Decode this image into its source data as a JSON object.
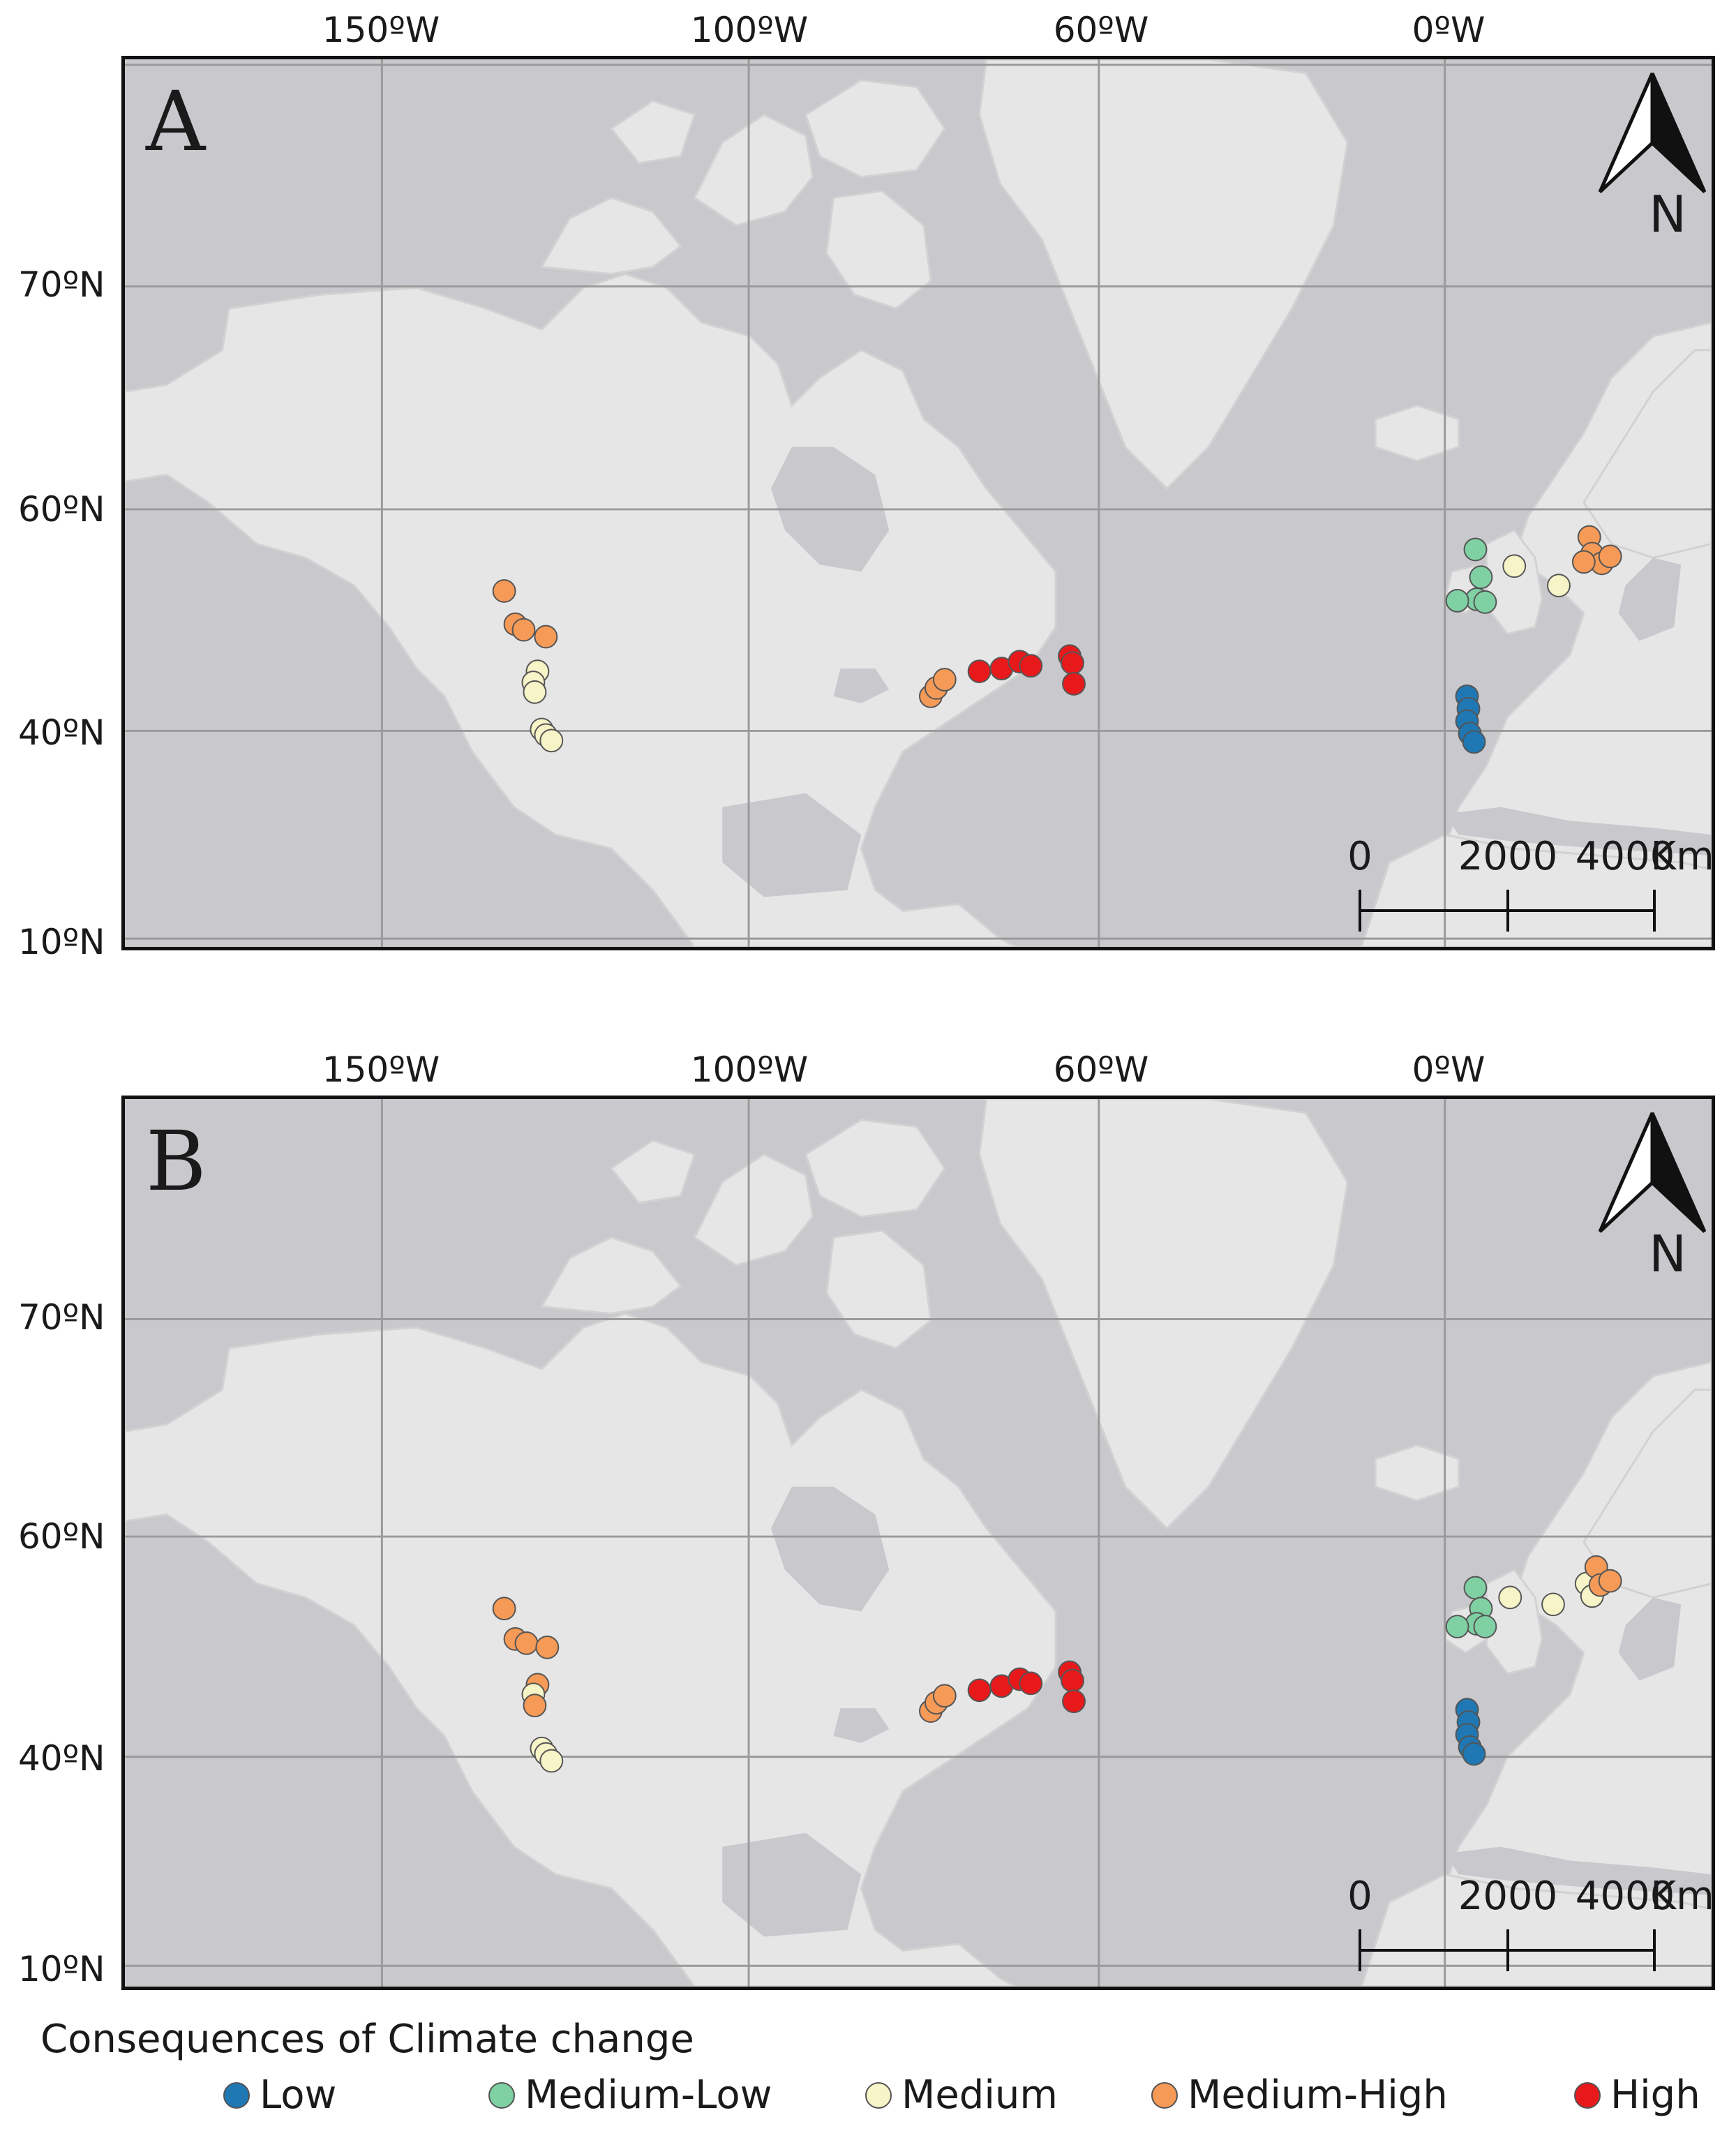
{
  "panels": [
    {
      "letter": "A",
      "north": "N",
      "lon_ticks": [
        "150ºW",
        "100ºW",
        "60ºW",
        "0ºW"
      ],
      "lat_ticks": [
        "70ºN",
        "60ºN",
        "40ºN",
        "10ºN"
      ],
      "scale": {
        "zero": "0",
        "mid": "2000",
        "end": "4000",
        "unit": "Km"
      }
    },
    {
      "letter": "B",
      "north": "N",
      "lon_ticks": [
        "150ºW",
        "100ºW",
        "60ºW",
        "0ºW"
      ],
      "lat_ticks": [
        "70ºN",
        "60ºN",
        "40ºN",
        "10ºN"
      ],
      "scale": {
        "zero": "0",
        "mid": "2000",
        "end": "4000",
        "unit": "Km"
      }
    }
  ],
  "legend": {
    "title": "Consequences of Climate change",
    "items": [
      {
        "label": "Low",
        "color": "#1f78b4"
      },
      {
        "label": "Medium-Low",
        "color": "#7fd1a4"
      },
      {
        "label": "Medium",
        "color": "#f7f4c8"
      },
      {
        "label": "Medium-High",
        "color": "#f59a57"
      },
      {
        "label": "High",
        "color": "#e8191b"
      }
    ]
  },
  "colors": {
    "ocean": "#c9c9cd",
    "land": "#e6e6e6",
    "grid": "#9a9a9a",
    "frame": "#111111"
  }
}
